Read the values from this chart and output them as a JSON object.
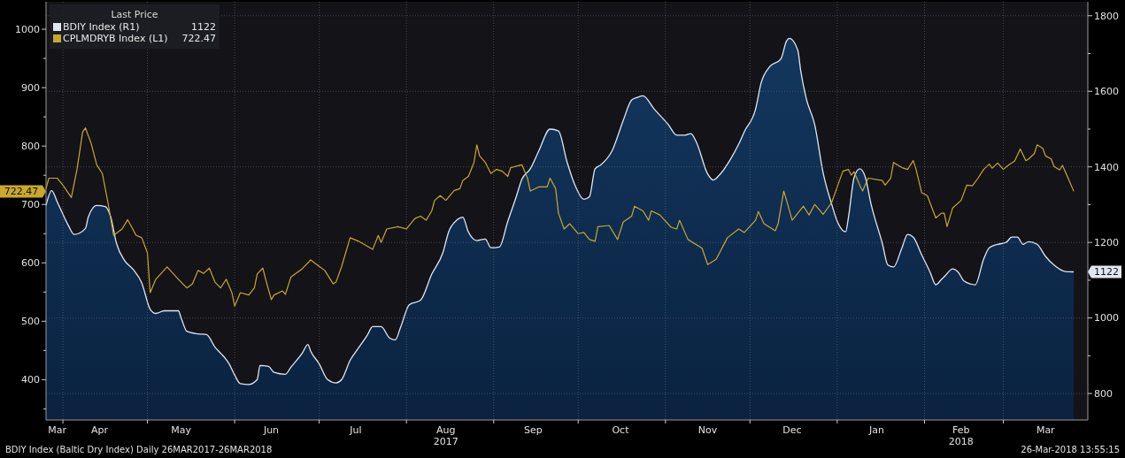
{
  "chart_data": {
    "type": "line",
    "legend_title": "Last Price",
    "legend": "top left",
    "grid": true,
    "ylim": [
      331,
      1047
    ],
    "yticks": [
      {
        "value": 350,
        "label": null
      },
      400,
      {
        "value": 450,
        "label": null
      },
      500,
      {
        "value": 550,
        "label": null
      },
      600,
      {
        "value": 650,
        "label": null
      },
      700,
      {
        "value": 750,
        "label": null
      },
      800,
      {
        "value": 850,
        "label": null
      },
      900,
      {
        "value": 950,
        "label": null
      },
      1000
    ],
    "y2lim": [
      730,
      1837
    ],
    "y2ticks": [
      800,
      {
        "value": 900,
        "label": null
      },
      1000,
      {
        "value": 1100,
        "label": null
      },
      1200,
      {
        "value": 1300,
        "label": null
      },
      1400,
      {
        "value": 1500,
        "label": null
      },
      1600,
      {
        "value": 1700,
        "label": null
      },
      1800
    ],
    "xlim": [
      "2017-03-26",
      "2018-03-31"
    ],
    "xticks": [
      {
        "value": "2017-03-30",
        "label": "Mar"
      },
      {
        "value": "2017-04-01",
        "label": null
      },
      {
        "value": "2017-04-14",
        "label": "Apr"
      },
      {
        "value": "2017-05-01",
        "label": null
      },
      {
        "value": "2017-05-13",
        "label": "May"
      },
      {
        "value": "2017-06-01",
        "label": null
      },
      {
        "value": "2017-06-14",
        "label": "Jun"
      },
      {
        "value": "2017-07-01",
        "label": null
      },
      {
        "value": "2017-07-14",
        "label": "Jul"
      },
      {
        "value": "2017-08-01",
        "label": null
      },
      {
        "value": "2017-08-15",
        "label": "Aug 2017"
      },
      {
        "value": "2017-09-01",
        "label": null
      },
      {
        "value": "2017-09-15",
        "label": "Sep"
      },
      {
        "value": "2017-10-01",
        "label": null
      },
      {
        "value": "2017-10-16",
        "label": "Oct"
      },
      {
        "value": "2017-11-01",
        "label": null
      },
      {
        "value": "2017-11-16",
        "label": "Nov"
      },
      {
        "value": "2017-12-01",
        "label": null
      },
      {
        "value": "2017-12-16",
        "label": "Dec"
      },
      {
        "value": "2018-01-01",
        "label": null
      },
      {
        "value": "2018-01-15",
        "label": "Jan"
      },
      {
        "value": "2018-02-01",
        "label": null
      },
      {
        "value": "2018-02-14",
        "label": "Feb 2018"
      },
      {
        "value": "2018-03-01",
        "label": null
      },
      {
        "value": "2018-03-16",
        "label": "Mar"
      }
    ],
    "annotations": [
      "1122",
      "722.47",
      "BDIY Index (Baltic Dry Index)  Daily 26MAR2017-26MAR2018",
      "26-Mar-2018 13:55:15"
    ],
    "series": [
      {
        "name": "BDIY Index  (R1)",
        "type": "area",
        "axis": "y2",
        "color": "#dfe7f0",
        "x": [
          "2017-03-26",
          "2017-03-28",
          "2017-03-30",
          "2017-04-03",
          "2017-04-05",
          "2017-04-09",
          "2017-04-10",
          "2017-04-13",
          "2017-04-16",
          "2017-04-18",
          "2017-04-20",
          "2017-04-23",
          "2017-04-26",
          "2017-04-29",
          "2017-05-02",
          "2017-05-04",
          "2017-05-07",
          "2017-05-12",
          "2017-05-13",
          "2017-05-15",
          "2017-05-19",
          "2017-05-22",
          "2017-05-25",
          "2017-05-27",
          "2017-05-30",
          "2017-06-01",
          "2017-06-03",
          "2017-06-06",
          "2017-06-09",
          "2017-06-10",
          "2017-06-13",
          "2017-06-15",
          "2017-06-19",
          "2017-06-21",
          "2017-06-25",
          "2017-06-27",
          "2017-06-28",
          "2017-07-01",
          "2017-07-04",
          "2017-07-07",
          "2017-07-09",
          "2017-07-12",
          "2017-07-15",
          "2017-07-18",
          "2017-07-20",
          "2017-07-23",
          "2017-07-26",
          "2017-07-28",
          "2017-07-30",
          "2017-08-02",
          "2017-08-06",
          "2017-08-10",
          "2017-08-14",
          "2017-08-16",
          "2017-08-19",
          "2017-08-21",
          "2017-08-23",
          "2017-08-26",
          "2017-08-29",
          "2017-08-31",
          "2017-09-03",
          "2017-09-06",
          "2017-09-09",
          "2017-09-11",
          "2017-09-14",
          "2017-09-17",
          "2017-09-21",
          "2017-09-24",
          "2017-09-27",
          "2017-09-30",
          "2017-10-03",
          "2017-10-05",
          "2017-10-07",
          "2017-10-09",
          "2017-10-13",
          "2017-10-17",
          "2017-10-20",
          "2017-10-22",
          "2017-10-24",
          "2017-10-28",
          "2017-11-02",
          "2017-11-05",
          "2017-11-08",
          "2017-11-10",
          "2017-11-12",
          "2017-11-16",
          "2017-11-18",
          "2017-11-20",
          "2017-11-24",
          "2017-11-27",
          "2017-11-29",
          "2017-12-03",
          "2017-12-05",
          "2017-12-08",
          "2017-12-12",
          "2017-12-14",
          "2017-12-15",
          "2017-12-18",
          "2017-12-19",
          "2017-12-21",
          "2017-12-24",
          "2017-12-27",
          "2017-12-30",
          "2018-01-01",
          "2018-01-04",
          "2018-01-05",
          "2018-01-07",
          "2018-01-09",
          "2018-01-11",
          "2018-01-13",
          "2018-01-17",
          "2018-01-19",
          "2018-01-21",
          "2018-01-24",
          "2018-01-26",
          "2018-01-28",
          "2018-01-31",
          "2018-02-03",
          "2018-02-05",
          "2018-02-07",
          "2018-02-08",
          "2018-02-11",
          "2018-02-13",
          "2018-02-15",
          "2018-02-19",
          "2018-02-22",
          "2018-02-24",
          "2018-02-27",
          "2018-03-02",
          "2018-03-04",
          "2018-03-06",
          "2018-03-08",
          "2018-03-10",
          "2018-03-13",
          "2018-03-16",
          "2018-03-19",
          "2018-03-23",
          "2018-03-26"
        ],
        "values": [
          1298,
          1337,
          1307,
          1244,
          1221,
          1237,
          1267,
          1298,
          1295,
          1267,
          1198,
          1151,
          1128,
          1093,
          1023,
          1012,
          1019,
          1019,
          1000,
          965,
          958,
          956,
          923,
          907,
          879,
          849,
          826,
          824,
          837,
          874,
          872,
          856,
          851,
          870,
          907,
          930,
          912,
          879,
          837,
          828,
          837,
          888,
          921,
          953,
          977,
          977,
          947,
          942,
          977,
          1035,
          1047,
          1116,
          1174,
          1228,
          1260,
          1267,
          1228,
          1205,
          1209,
          1186,
          1188,
          1256,
          1321,
          1367,
          1395,
          1442,
          1500,
          1495,
          1414,
          1349,
          1314,
          1321,
          1395,
          1405,
          1442,
          1523,
          1577,
          1584,
          1588,
          1553,
          1512,
          1484,
          1484,
          1488,
          1465,
          1381,
          1365,
          1377,
          1419,
          1460,
          1493,
          1553,
          1623,
          1665,
          1686,
          1733,
          1740,
          1709,
          1656,
          1581,
          1512,
          1384,
          1302,
          1256,
          1228,
          1267,
          1372,
          1395,
          1372,
          1302,
          1198,
          1140,
          1135,
          1186,
          1221,
          1214,
          1167,
          1121,
          1088,
          1102,
          1109,
          1130,
          1121,
          1098,
          1088,
          1156,
          1186,
          1195,
          1200,
          1214,
          1214,
          1195,
          1202,
          1195,
          1163,
          1140,
          1123,
          1122
        ]
      },
      {
        "name": "CPLMDRYB Index  (L1)",
        "axis": "y",
        "color": "#c9a82c",
        "x": [
          "2017-03-26",
          "2017-03-27",
          "2017-03-30",
          "2017-04-01",
          "2017-04-04",
          "2017-04-06",
          "2017-04-08",
          "2017-04-09",
          "2017-04-11",
          "2017-04-13",
          "2017-04-15",
          "2017-04-17",
          "2017-04-19",
          "2017-04-22",
          "2017-04-24",
          "2017-04-27",
          "2017-04-29",
          "2017-05-01",
          "2017-05-02",
          "2017-05-04",
          "2017-05-08",
          "2017-05-12",
          "2017-05-15",
          "2017-05-17",
          "2017-05-19",
          "2017-05-21",
          "2017-05-23",
          "2017-05-25",
          "2017-05-27",
          "2017-05-29",
          "2017-05-31",
          "2017-06-01",
          "2017-06-03",
          "2017-06-06",
          "2017-06-08",
          "2017-06-09",
          "2017-06-11",
          "2017-06-12",
          "2017-06-14",
          "2017-06-15",
          "2017-06-18",
          "2017-06-19",
          "2017-06-21",
          "2017-06-25",
          "2017-06-28",
          "2017-07-01",
          "2017-07-03",
          "2017-07-06",
          "2017-07-07",
          "2017-07-09",
          "2017-07-12",
          "2017-07-15",
          "2017-07-20",
          "2017-07-22",
          "2017-07-23",
          "2017-07-25",
          "2017-07-29",
          "2017-08-01",
          "2017-08-04",
          "2017-08-06",
          "2017-08-08",
          "2017-08-10",
          "2017-08-11",
          "2017-08-13",
          "2017-08-15",
          "2017-08-18",
          "2017-08-20",
          "2017-08-21",
          "2017-08-23",
          "2017-08-25",
          "2017-08-26",
          "2017-08-27",
          "2017-08-29",
          "2017-08-31",
          "2017-09-02",
          "2017-09-04",
          "2017-09-06",
          "2017-09-07",
          "2017-09-11",
          "2017-09-13",
          "2017-09-14",
          "2017-09-17",
          "2017-09-20",
          "2017-09-21",
          "2017-09-23",
          "2017-09-24",
          "2017-09-26",
          "2017-09-28",
          "2017-10-01",
          "2017-10-03",
          "2017-10-05",
          "2017-10-07",
          "2017-10-08",
          "2017-10-12",
          "2017-10-15",
          "2017-10-17",
          "2017-10-20",
          "2017-10-21",
          "2017-10-24",
          "2017-10-26",
          "2017-10-27",
          "2017-10-30",
          "2017-11-03",
          "2017-11-05",
          "2017-11-06",
          "2017-11-09",
          "2017-11-14",
          "2017-11-16",
          "2017-11-19",
          "2017-11-23",
          "2017-11-27",
          "2017-11-29",
          "2017-12-03",
          "2017-12-04",
          "2017-12-06",
          "2017-12-10",
          "2017-12-11",
          "2017-12-13",
          "2017-12-14",
          "2017-12-16",
          "2017-12-20",
          "2017-12-22",
          "2017-12-24",
          "2017-12-27",
          "2017-12-30",
          "2018-01-01",
          "2018-01-03",
          "2018-01-05",
          "2018-01-06",
          "2018-01-07",
          "2018-01-09",
          "2018-01-10",
          "2018-01-12",
          "2018-01-17",
          "2018-01-18",
          "2018-01-20",
          "2018-01-21",
          "2018-01-24",
          "2018-01-26",
          "2018-01-28",
          "2018-01-29",
          "2018-01-31",
          "2018-02-02",
          "2018-02-05",
          "2018-02-07",
          "2018-02-08",
          "2018-02-09",
          "2018-02-11",
          "2018-02-14",
          "2018-02-16",
          "2018-02-18",
          "2018-02-20",
          "2018-02-22",
          "2018-02-24",
          "2018-02-25",
          "2018-02-27",
          "2018-03-01",
          "2018-03-03",
          "2018-03-05",
          "2018-03-07",
          "2018-03-09",
          "2018-03-10",
          "2018-03-12",
          "2018-03-13",
          "2018-03-15",
          "2018-03-16",
          "2018-03-18",
          "2018-03-19",
          "2018-03-21",
          "2018-03-22",
          "2018-03-24",
          "2018-03-26"
        ],
        "values": [
          727,
          745,
          745,
          733,
          712,
          760,
          824,
          831,
          805,
          768,
          753,
          703,
          647,
          658,
          674,
          647,
          643,
          617,
          549,
          572,
          593,
          572,
          557,
          564,
          587,
          582,
          591,
          567,
          557,
          572,
          549,
          526,
          549,
          545,
          557,
          581,
          591,
          572,
          537,
          545,
          552,
          546,
          576,
          590,
          605,
          594,
          587,
          564,
          567,
          594,
          643,
          637,
          623,
          647,
          635,
          658,
          662,
          658,
          676,
          680,
          673,
          689,
          707,
          715,
          707,
          724,
          727,
          741,
          748,
          772,
          802,
          783,
          772,
          753,
          760,
          757,
          748,
          763,
          768,
          745,
          723,
          730,
          730,
          745,
          727,
          685,
          658,
          667,
          650,
          652,
          640,
          637,
          662,
          664,
          640,
          670,
          680,
          697,
          689,
          673,
          689,
          682,
          661,
          658,
          673,
          640,
          625,
          597,
          606,
          643,
          658,
          652,
          673,
          688,
          667,
          655,
          667,
          723,
          707,
          673,
          697,
          682,
          700,
          683,
          703,
          730,
          757,
          760,
          750,
          756,
          733,
          723,
          745,
          741,
          733,
          745,
          772,
          763,
          760,
          775,
          760,
          720,
          715,
          677,
          685,
          685,
          662,
          694,
          707,
          733,
          732,
          745,
          760,
          769,
          762,
          771,
          760,
          768,
          774,
          795,
          775,
          778,
          787,
          802,
          796,
          783,
          778,
          765,
          759,
          767,
          745,
          722.47
        ]
      }
    ]
  }
}
